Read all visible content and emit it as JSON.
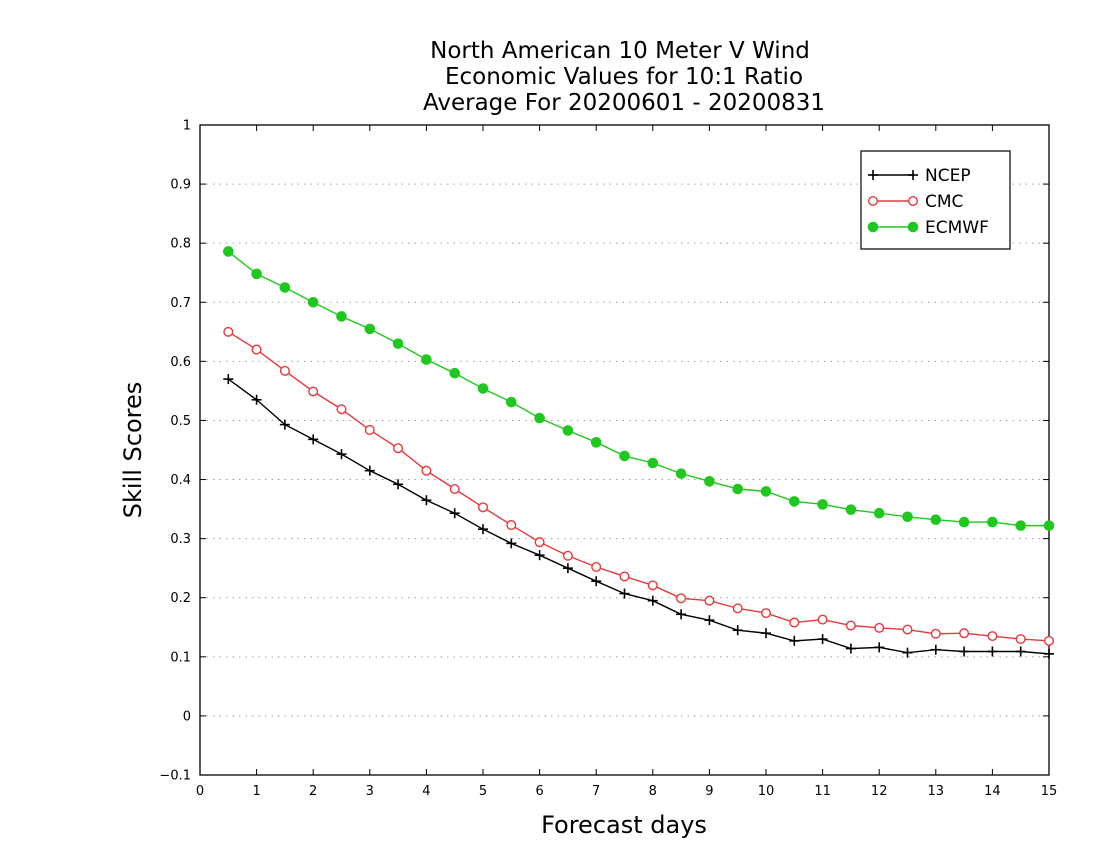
{
  "chart_data": {
    "type": "line",
    "title_lines": [
      "North American 10 Meter V Wind",
      "Economic Values for 10:1 Ratio",
      "Average For 20200601 - 20200831"
    ],
    "xlabel": "Forecast days",
    "ylabel": "Skill Scores",
    "xlim": [
      0,
      15
    ],
    "ylim": [
      -0.1,
      1
    ],
    "xticks": [
      0,
      1,
      2,
      3,
      4,
      5,
      6,
      7,
      8,
      9,
      10,
      11,
      12,
      13,
      14,
      15
    ],
    "xtick_labels": [
      "0",
      "1",
      "2",
      "3",
      "4",
      "5",
      "6",
      "7",
      "8",
      "9",
      "10",
      "11",
      "12",
      "13",
      "14",
      "15"
    ],
    "yticks": [
      -0.1,
      0,
      0.1,
      0.2,
      0.3,
      0.4,
      0.5,
      0.6,
      0.7,
      0.8,
      0.9,
      1
    ],
    "ytick_labels": [
      "−0.1",
      "0",
      "0.1",
      "0.2",
      "0.3",
      "0.4",
      "0.5",
      "0.6",
      "0.7",
      "0.8",
      "0.9",
      "1"
    ],
    "grid": "horizontal dotted",
    "legend_position": "top-right",
    "x": [
      0.5,
      1,
      1.5,
      2,
      2.5,
      3,
      3.5,
      4,
      4.5,
      5,
      5.5,
      6,
      6.5,
      7,
      7.5,
      8,
      8.5,
      9,
      9.5,
      10,
      10.5,
      11,
      11.5,
      12,
      12.5,
      13,
      13.5,
      14,
      14.5,
      15
    ],
    "series": [
      {
        "name": "NCEP",
        "color": "#000000",
        "marker": "plus",
        "values": [
          0.57,
          0.535,
          0.493,
          0.468,
          0.443,
          0.415,
          0.392,
          0.365,
          0.343,
          0.316,
          0.292,
          0.272,
          0.25,
          0.228,
          0.207,
          0.195,
          0.172,
          0.162,
          0.145,
          0.14,
          0.127,
          0.13,
          0.114,
          0.116,
          0.107,
          0.112,
          0.109,
          0.109,
          0.109,
          0.105
        ]
      },
      {
        "name": "CMC",
        "color": "#e8383b",
        "marker": "open-circle",
        "values": [
          0.65,
          0.62,
          0.584,
          0.549,
          0.519,
          0.484,
          0.453,
          0.415,
          0.384,
          0.353,
          0.323,
          0.294,
          0.271,
          0.252,
          0.236,
          0.221,
          0.199,
          0.195,
          0.182,
          0.174,
          0.158,
          0.163,
          0.153,
          0.149,
          0.146,
          0.139,
          0.14,
          0.135,
          0.13,
          0.127
        ]
      },
      {
        "name": "ECMWF",
        "color": "#1ec81e",
        "marker": "filled-circle",
        "values": [
          0.786,
          0.748,
          0.725,
          0.7,
          0.676,
          0.655,
          0.63,
          0.603,
          0.58,
          0.554,
          0.531,
          0.504,
          0.483,
          0.463,
          0.44,
          0.428,
          0.41,
          0.397,
          0.384,
          0.38,
          0.363,
          0.358,
          0.349,
          0.343,
          0.337,
          0.332,
          0.328,
          0.328,
          0.322,
          0.322
        ]
      }
    ]
  }
}
